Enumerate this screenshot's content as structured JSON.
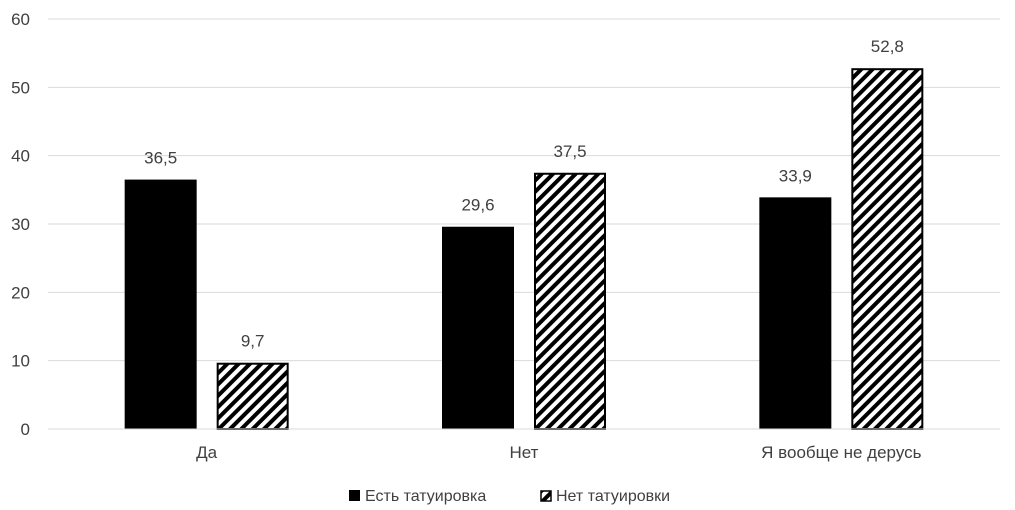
{
  "chart_data": {
    "type": "bar",
    "categories": [
      "Да",
      "Нет",
      "Я вообще не дерусь"
    ],
    "series": [
      {
        "name": "Есть татуировка",
        "values": [
          36.5,
          29.6,
          33.9
        ],
        "labels": [
          "36,5",
          "29,6",
          "33,9"
        ],
        "style": "solid",
        "color": "#000000"
      },
      {
        "name": "Нет татуировки",
        "values": [
          9.7,
          37.5,
          52.8
        ],
        "labels": [
          "9,7",
          "37,5",
          "52,8"
        ],
        "style": "hatched",
        "color": "#000000"
      }
    ],
    "ylim": [
      0,
      60
    ],
    "yticks": [
      0,
      10,
      20,
      30,
      40,
      50,
      60
    ],
    "grid": true,
    "legend": "bottom-center",
    "title": "",
    "xlabel": "",
    "ylabel": ""
  }
}
